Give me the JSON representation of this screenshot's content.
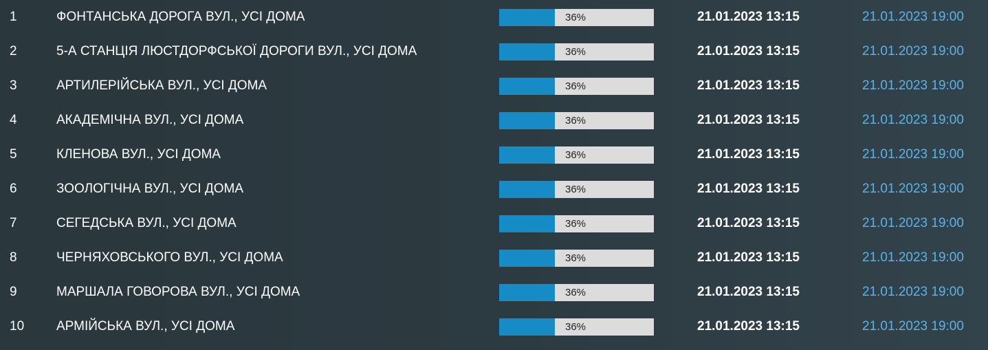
{
  "colors": {
    "background": "#2c3a41",
    "progress_fill": "#168bc6",
    "progress_track": "#dcdcdc",
    "end_time": "#5cb3e6"
  },
  "rows": [
    {
      "num": "1",
      "street": "ФОНТАНСЬКА ДОРОГА ВУЛ., УСІ ДОМА",
      "progress_label": "36%",
      "progress_fraction": 0.36,
      "start": "21.01.2023 13:15",
      "end": "21.01.2023 19:00"
    },
    {
      "num": "2",
      "street": "5-А СТАНЦІЯ ЛЮСТДОРФСЬКОЇ ДОРОГИ ВУЛ., УСІ ДОМА",
      "progress_label": "36%",
      "progress_fraction": 0.36,
      "start": "21.01.2023 13:15",
      "end": "21.01.2023 19:00"
    },
    {
      "num": "3",
      "street": "АРТИЛЕРІЙСЬКА ВУЛ., УСІ ДОМА",
      "progress_label": "36%",
      "progress_fraction": 0.36,
      "start": "21.01.2023 13:15",
      "end": "21.01.2023 19:00"
    },
    {
      "num": "4",
      "street": "АКАДЕМІЧНА ВУЛ., УСІ ДОМА",
      "progress_label": "36%",
      "progress_fraction": 0.36,
      "start": "21.01.2023 13:15",
      "end": "21.01.2023 19:00"
    },
    {
      "num": "5",
      "street": "КЛЕНОВА ВУЛ., УСІ ДОМА",
      "progress_label": "36%",
      "progress_fraction": 0.36,
      "start": "21.01.2023 13:15",
      "end": "21.01.2023 19:00"
    },
    {
      "num": "6",
      "street": "ЗООЛОГІЧНА ВУЛ., УСІ ДОМА",
      "progress_label": "36%",
      "progress_fraction": 0.36,
      "start": "21.01.2023 13:15",
      "end": "21.01.2023 19:00"
    },
    {
      "num": "7",
      "street": "СЕГЕДСЬКА ВУЛ., УСІ ДОМА",
      "progress_label": "36%",
      "progress_fraction": 0.36,
      "start": "21.01.2023 13:15",
      "end": "21.01.2023 19:00"
    },
    {
      "num": "8",
      "street": "ЧЕРНЯХОВСЬКОГО ВУЛ., УСІ ДОМА",
      "progress_label": "36%",
      "progress_fraction": 0.36,
      "start": "21.01.2023 13:15",
      "end": "21.01.2023 19:00"
    },
    {
      "num": "9",
      "street": "МАРШАЛА ГОВОРОВА ВУЛ., УСІ ДОМА",
      "progress_label": "36%",
      "progress_fraction": 0.36,
      "start": "21.01.2023 13:15",
      "end": "21.01.2023 19:00"
    },
    {
      "num": "10",
      "street": "АРМІЙСЬКА ВУЛ., УСІ ДОМА",
      "progress_label": "36%",
      "progress_fraction": 0.36,
      "start": "21.01.2023 13:15",
      "end": "21.01.2023 19:00"
    }
  ]
}
